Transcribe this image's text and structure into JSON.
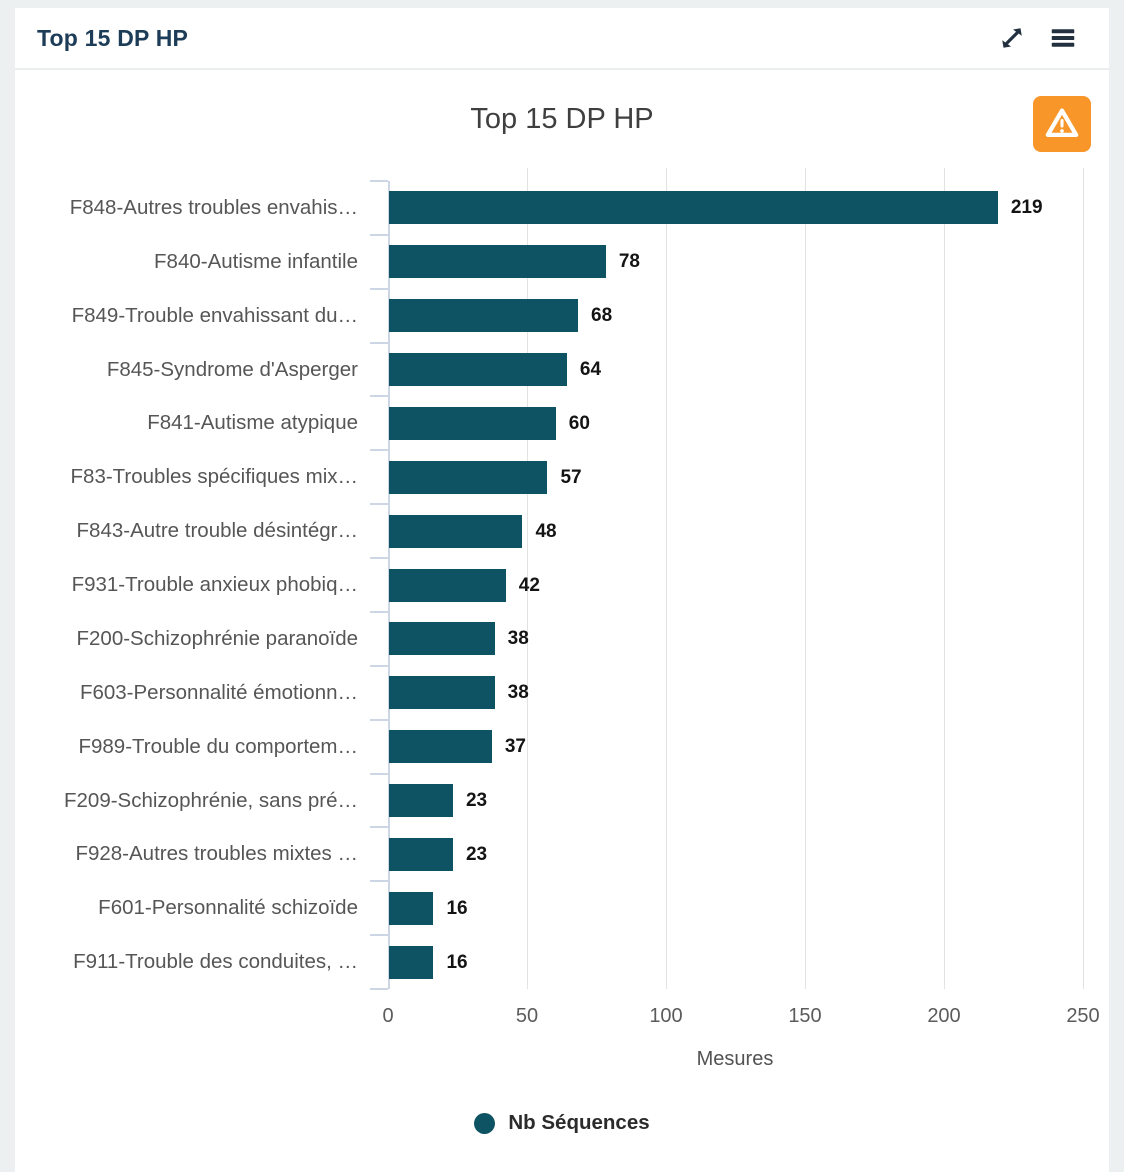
{
  "panel": {
    "title": "Top 15 DP HP",
    "icons": [
      {
        "name": "expand-icon",
        "meaning": "maximize panel"
      },
      {
        "name": "menu-icon",
        "meaning": "panel options"
      }
    ]
  },
  "chart": {
    "title": "Top 15 DP HP",
    "warning_icon": "warning-triangle-icon"
  },
  "colors": {
    "bar": "#0d5363",
    "warning_button": "#f89629",
    "panel_title": "#1c3c58",
    "axis_line": "#ccd6e4",
    "gridline": "#e2e2e2"
  },
  "chart_data": {
    "type": "bar",
    "orientation": "horizontal",
    "title": "Top 15 DP HP",
    "categories": [
      "F848-Autres troubles envahis…",
      "F840-Autisme infantile",
      "F849-Trouble envahissant du…",
      "F845-Syndrome d'Asperger",
      "F841-Autisme atypique",
      "F83-Troubles spécifiques mix…",
      "F843-Autre trouble désintégr…",
      "F931-Trouble anxieux phobiq…",
      "F200-Schizophrénie paranoïde",
      "F603-Personnalité émotionn…",
      "F989-Trouble du comportem…",
      "F209-Schizophrénie, sans pré…",
      "F928-Autres troubles mixtes …",
      "F601-Personnalité schizoïde",
      "F911-Trouble des conduites, …"
    ],
    "values": [
      219,
      78,
      68,
      64,
      60,
      57,
      48,
      42,
      38,
      38,
      37,
      23,
      23,
      16,
      16
    ],
    "series_name": "Nb Séquences",
    "xlabel": "Mesures",
    "x_ticks": [
      0,
      50,
      100,
      150,
      200,
      250
    ],
    "xlim": [
      0,
      250
    ],
    "grid": true,
    "legend_position": "bottom",
    "value_labels": true
  }
}
